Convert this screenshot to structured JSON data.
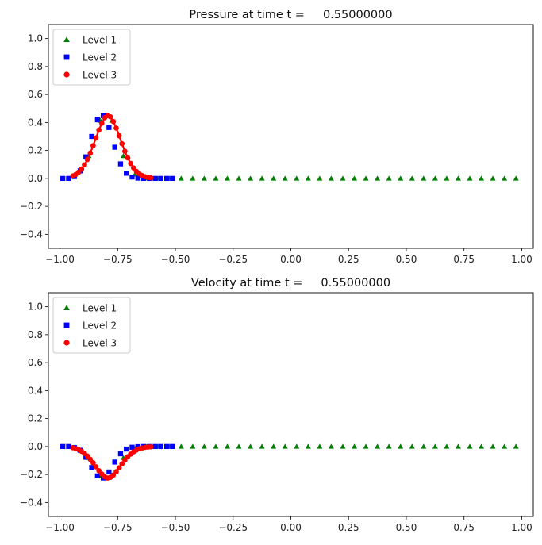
{
  "colors": {
    "level1": "#008000",
    "level2": "#0000ff",
    "level3": "#ff0000",
    "axes": "#000000"
  },
  "legend": {
    "placement": "upper-left",
    "entries": [
      "Level 1",
      "Level 2",
      "Level 3"
    ],
    "markers": [
      "triangle",
      "square",
      "circle"
    ]
  },
  "chart_data": [
    {
      "type": "scatter",
      "title": "Pressure at time t =     0.55000000",
      "xlim": [
        -1.05,
        1.05
      ],
      "ylim": [
        -0.5,
        1.1
      ],
      "xticks": [
        -1.0,
        -0.75,
        -0.5,
        -0.25,
        0.0,
        0.25,
        0.5,
        0.75,
        1.0
      ],
      "xtick_labels": [
        "−1.00",
        "−0.75",
        "−0.50",
        "−0.25",
        "0.00",
        "0.25",
        "0.50",
        "0.75",
        "1.00"
      ],
      "yticks": [
        -0.4,
        -0.2,
        0.0,
        0.2,
        0.4,
        0.6,
        0.8,
        1.0
      ],
      "ytick_labels": [
        "−0.4",
        "−0.2",
        "0.0",
        "0.2",
        "0.4",
        "0.6",
        "0.8",
        "1.0"
      ],
      "legend": "upper-left",
      "series": [
        {
          "name": "Level 1",
          "marker": "triangle",
          "color": "#008000",
          "x": [
            -0.875,
            -0.825,
            -0.775,
            -0.725,
            -0.675,
            -0.625,
            -0.575,
            -0.525,
            -0.475,
            -0.425,
            -0.375,
            -0.325,
            -0.275,
            -0.225,
            -0.175,
            -0.125,
            -0.075,
            -0.025,
            0.025,
            0.075,
            0.125,
            0.175,
            0.225,
            0.275,
            0.325,
            0.375,
            0.425,
            0.475,
            0.525,
            0.575,
            0.625,
            0.675,
            0.725,
            0.775,
            0.825,
            0.875,
            0.925,
            0.975
          ],
          "y": [
            0.161,
            0.414,
            0.414,
            0.161,
            0.03,
            0.003,
            0.0,
            0.0,
            0.0,
            0.0,
            0.0,
            0.0,
            0.0,
            0.0,
            0.0,
            0.0,
            0.0,
            0.0,
            0.0,
            0.0,
            0.0,
            0.0,
            0.0,
            0.0,
            0.0,
            0.0,
            0.0,
            0.0,
            0.0,
            0.0,
            0.0,
            0.0,
            0.0,
            0.0,
            0.0,
            0.0,
            0.0,
            0.0
          ]
        },
        {
          "name": "Level 2",
          "marker": "square",
          "color": "#0000ff",
          "x": [
            -0.9875,
            -0.9625,
            -0.9375,
            -0.9125,
            -0.8875,
            -0.8625,
            -0.8375,
            -0.8125,
            -0.7875,
            -0.7625,
            -0.7375,
            -0.7125,
            -0.6875,
            -0.6625,
            -0.6375,
            -0.6125,
            -0.5875,
            -0.5625,
            -0.5375,
            -0.5125
          ],
          "y": [
            0.0,
            0.0,
            0.013,
            0.054,
            0.154,
            0.3,
            0.419,
            0.449,
            0.364,
            0.223,
            0.104,
            0.037,
            0.01,
            0.002,
            0.0,
            0.0,
            0.0,
            0.0,
            0.0,
            0.0
          ]
        },
        {
          "name": "Level 3",
          "marker": "circle",
          "color": "#ff0000",
          "x": [
            -0.94375,
            -0.93125,
            -0.91875,
            -0.90625,
            -0.89375,
            -0.88125,
            -0.86875,
            -0.85625,
            -0.84375,
            -0.83125,
            -0.81875,
            -0.80625,
            -0.79375,
            -0.78125,
            -0.76875,
            -0.75625,
            -0.74375,
            -0.73125,
            -0.71875,
            -0.70625,
            -0.69375,
            -0.68125,
            -0.66875,
            -0.65625,
            -0.64375,
            -0.63125,
            -0.61875,
            -0.60625
          ],
          "y": [
            0.018,
            0.029,
            0.045,
            0.067,
            0.097,
            0.135,
            0.181,
            0.234,
            0.29,
            0.346,
            0.395,
            0.434,
            0.449,
            0.44,
            0.407,
            0.36,
            0.305,
            0.248,
            0.194,
            0.147,
            0.107,
            0.075,
            0.05,
            0.033,
            0.02,
            0.012,
            0.007,
            0.004
          ]
        }
      ]
    },
    {
      "type": "scatter",
      "title": "Velocity at time t =     0.55000000",
      "xlim": [
        -1.05,
        1.05
      ],
      "ylim": [
        -0.5,
        1.1
      ],
      "xticks": [
        -1.0,
        -0.75,
        -0.5,
        -0.25,
        0.0,
        0.25,
        0.5,
        0.75,
        1.0
      ],
      "xtick_labels": [
        "−1.00",
        "−0.75",
        "−0.50",
        "−0.25",
        "0.00",
        "0.25",
        "0.50",
        "0.75",
        "1.00"
      ],
      "yticks": [
        -0.4,
        -0.2,
        0.0,
        0.2,
        0.4,
        0.6,
        0.8,
        1.0
      ],
      "ytick_labels": [
        "−0.4",
        "−0.2",
        "0.0",
        "0.2",
        "0.4",
        "0.6",
        "0.8",
        "1.0"
      ],
      "legend": "upper-left",
      "series": [
        {
          "name": "Level 1",
          "marker": "triangle",
          "color": "#008000",
          "x": [
            -0.875,
            -0.825,
            -0.775,
            -0.725,
            -0.675,
            -0.625,
            -0.575,
            -0.525,
            -0.475,
            -0.425,
            -0.375,
            -0.325,
            -0.275,
            -0.225,
            -0.175,
            -0.125,
            -0.075,
            -0.025,
            0.025,
            0.075,
            0.125,
            0.175,
            0.225,
            0.275,
            0.325,
            0.375,
            0.425,
            0.475,
            0.525,
            0.575,
            0.625,
            0.675,
            0.725,
            0.775,
            0.825,
            0.875,
            0.925,
            0.975
          ],
          "y": [
            -0.08,
            -0.207,
            -0.207,
            -0.08,
            -0.015,
            -0.002,
            0.0,
            0.0,
            0.0,
            0.0,
            0.0,
            0.0,
            0.0,
            0.0,
            0.0,
            0.0,
            0.0,
            0.0,
            0.0,
            0.0,
            0.0,
            0.0,
            0.0,
            0.0,
            0.0,
            0.0,
            0.0,
            0.0,
            0.0,
            0.0,
            0.0,
            0.0,
            0.0,
            0.0,
            0.0,
            0.0,
            0.0,
            0.0
          ]
        },
        {
          "name": "Level 2",
          "marker": "square",
          "color": "#0000ff",
          "x": [
            -0.9875,
            -0.9625,
            -0.9375,
            -0.9125,
            -0.8875,
            -0.8625,
            -0.8375,
            -0.8125,
            -0.7875,
            -0.7625,
            -0.7375,
            -0.7125,
            -0.6875,
            -0.6625,
            -0.6375,
            -0.6125,
            -0.5875,
            -0.5625,
            -0.5375,
            -0.5125
          ],
          "y": [
            0.0,
            0.0,
            -0.007,
            -0.027,
            -0.077,
            -0.15,
            -0.21,
            -0.225,
            -0.182,
            -0.111,
            -0.052,
            -0.018,
            -0.005,
            -0.001,
            0.0,
            0.0,
            0.0,
            0.0,
            0.0,
            0.0
          ]
        },
        {
          "name": "Level 3",
          "marker": "circle",
          "color": "#ff0000",
          "x": [
            -0.94375,
            -0.93125,
            -0.91875,
            -0.90625,
            -0.89375,
            -0.88125,
            -0.86875,
            -0.85625,
            -0.84375,
            -0.83125,
            -0.81875,
            -0.80625,
            -0.79375,
            -0.78125,
            -0.76875,
            -0.75625,
            -0.74375,
            -0.73125,
            -0.71875,
            -0.70625,
            -0.69375,
            -0.68125,
            -0.66875,
            -0.65625,
            -0.64375,
            -0.63125,
            -0.61875,
            -0.60625
          ],
          "y": [
            -0.009,
            -0.015,
            -0.023,
            -0.034,
            -0.049,
            -0.068,
            -0.091,
            -0.117,
            -0.145,
            -0.173,
            -0.197,
            -0.217,
            -0.225,
            -0.22,
            -0.204,
            -0.18,
            -0.152,
            -0.124,
            -0.097,
            -0.073,
            -0.054,
            -0.038,
            -0.025,
            -0.016,
            -0.01,
            -0.006,
            -0.004,
            -0.002
          ]
        }
      ]
    }
  ]
}
